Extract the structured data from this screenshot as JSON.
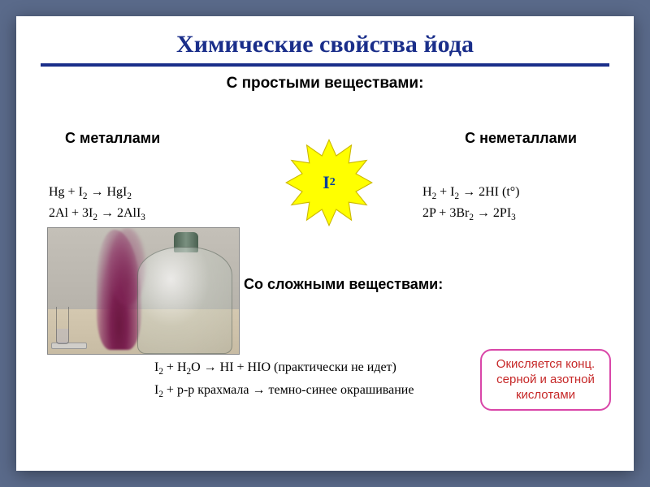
{
  "colors": {
    "page_bg": "#5a6a8a",
    "slide_bg": "#ffffff",
    "title_color": "#1a2e8a",
    "rule_color": "#1a2e8a",
    "text_color": "#000000",
    "callout_border": "#d946a8",
    "callout_text": "#c62828",
    "star_fill": "#ffff00",
    "star_stroke": "#cbb800",
    "star_label_color": "#063d9e"
  },
  "typography": {
    "title_fontsize_pt": 22,
    "section_fontsize_pt": 14,
    "equation_fontsize_pt": 12,
    "callout_fontsize_pt": 11,
    "star_label_fontsize_pt": 16
  },
  "title": "Химические свойства йода",
  "section_simple": "С простыми веществами:",
  "metals_header": "С металлами",
  "nonmetals_header": "С неметаллами",
  "star_label_html": "I<sub>2</sub>",
  "eqn_metals": [
    "Hg + I<sub>2</sub>  →   HgI<sub>2</sub>",
    "2Al + 3I<sub>2</sub> → 2AlI<sub>3</sub>"
  ],
  "eqn_nonmetals": [
    "H<sub>2</sub> +   I<sub>2</sub>     → 2HI   (t°)",
    "2P   +   3Br<sub>2</sub> → 2PI<sub>3</sub>"
  ],
  "section_complex": "Со сложными веществами:",
  "eqn_complex": [
    "I<sub>2</sub>    + H<sub>2</sub>O   → HI + HIO (практически не идет)",
    "I<sub>2</sub>   + р-р крахмала → темно-синее окрашивание"
  ],
  "callout_text": "Окисляется конц. серной и азотной кислотами",
  "photo": {
    "description": "iodine-sublimation-purple-vapor-under-bell-jar",
    "bg_gradient": [
      "#c4c0b8",
      "#aaa69e"
    ],
    "table_gradient": [
      "#d4c8b0",
      "#c8bca4"
    ],
    "smoke_color_core": "#6b1840",
    "smoke_color_mid": "#7a2050",
    "jar_tint": "rgba(200,210,200,0.35)"
  }
}
